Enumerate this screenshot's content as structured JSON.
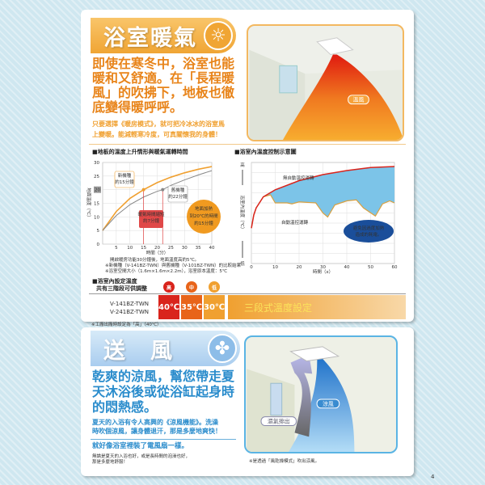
{
  "heating": {
    "title": "浴室暖氣",
    "icon": "sun-icon",
    "headline": [
      "即使在寒冬中，浴室也能",
      "暖和又舒適。在「長程暖",
      "風」的吹拂下，地板也徹",
      "底變得暖呼呼。"
    ],
    "sub": [
      "只要選擇《暖房模式》，就可把冷冰冰的浴室馬",
      "上變暖。能減輕寒冷度，可真關懷我的身體！"
    ],
    "illustration_label": "溫風"
  },
  "chart1": {
    "section_title": "■地板的溫度上升情形與暖氣運轉時間",
    "new_label": [
      "新機種",
      "約15分鐘"
    ],
    "old_label": [
      "舊機種",
      "約22分鐘"
    ],
    "reduce_label": [
      "暖氣時間縮短",
      "約7分鐘"
    ],
    "circle_label": [
      "地面加熱",
      "到20℃的時間",
      "約15分鐘"
    ],
    "highlight_tick": "20",
    "notes": [
      "開啟暖房功能30分鐘後，地面溫度高約5℃。",
      "※新機種（V-141BZ-TWN）與舊機種（V-101BZ-TWN）的比較結果",
      "※浴室空間大小（1.6m×1.6m×2.2m），浴室原本溫度：5℃"
    ]
  },
  "chart2": {
    "section_title": "■浴室內溫度控制示意圖",
    "label_no_auto": "無自動溫控運轉",
    "label_auto": "自動溫控運轉",
    "bubble": [
      "避免因過度加熱",
      "造成的耗電。"
    ],
    "y_high": "高",
    "y_low": "低"
  },
  "setting": {
    "title": [
      "■浴室內設定溫度",
      "共有三階段可供調整"
    ],
    "levels": [
      {
        "name": "高",
        "temp": "40℃",
        "color": "#d9241c"
      },
      {
        "name": "中",
        "temp": "35℃",
        "color": "#e8641a"
      },
      {
        "name": "低",
        "temp": "30℃",
        "color": "#f0a030"
      }
    ],
    "models": [
      "V-141BZ-TWN",
      "V-241BZ-TWN"
    ],
    "banner": "三段式溫度設定",
    "note": "※工廠出廠時設定為「高」（40℃）"
  },
  "fan": {
    "title": "送　風",
    "icon": "fan-icon",
    "headline": [
      "乾爽的涼風，幫您帶走夏",
      "天沐浴後或從浴缸起身時",
      "的悶熱感。"
    ],
    "sub": [
      "夏天的入浴有令人高興的《涼風機能》。洗澡",
      "時吹個涼風，讓身體退汗，那是多麼地爽快！"
    ],
    "sub2": "就好像浴室裡裝了電風扇一樣。",
    "small": [
      "無論是夏天的入浴也好，或是長時間的泡澡也好，",
      "那是多麼地舒服！"
    ],
    "label_cool": "涼風",
    "label_exhaust": "濕氣排出",
    "note": "※是透過「風乾燥模式」吹出涼風。"
  },
  "page_number": "4",
  "chart_data": [
    {
      "type": "line",
      "xlabel": "時間（分）",
      "ylabel": "地面溫度（℃）",
      "xlim": [
        0,
        40
      ],
      "ylim": [
        0,
        30
      ],
      "xticks": [
        5,
        10,
        15,
        20,
        25,
        30,
        35,
        40
      ],
      "yticks": [
        0,
        5,
        10,
        15,
        20,
        25,
        30
      ],
      "grid": true,
      "series": [
        {
          "name": "新機種",
          "color": "#f0a030",
          "x": [
            0,
            5,
            10,
            15,
            20,
            25,
            30,
            35,
            40
          ],
          "y": [
            5,
            12,
            16.8,
            20,
            22.6,
            24.6,
            26.2,
            27.5,
            28.5
          ]
        },
        {
          "name": "舊機種",
          "color": "#888888",
          "x": [
            0,
            5,
            10,
            15,
            20,
            22,
            25,
            30,
            35,
            40
          ],
          "y": [
            5,
            10.5,
            14.5,
            17.3,
            19.4,
            20,
            21.6,
            23.6,
            25.4,
            27
          ]
        }
      ]
    },
    {
      "type": "line",
      "xlabel": "時間（x）",
      "ylabel": "浴室內溫度（℃）",
      "xlim": [
        0,
        60
      ],
      "ylim": [
        0,
        10
      ],
      "xticks": [
        0,
        10,
        20,
        30,
        40,
        50,
        60
      ],
      "grid": true,
      "series": [
        {
          "name": "無自動溫控運轉",
          "color": "#d9241c",
          "x": [
            0,
            1,
            2,
            5,
            10,
            20,
            30,
            40,
            50,
            60
          ],
          "y": [
            3.5,
            4.8,
            5.5,
            6.6,
            7.3,
            8.2,
            8.8,
            9.2,
            9.5,
            9.6
          ]
        },
        {
          "name": "自動溫控運轉",
          "color": "#d9a040",
          "x": [
            0,
            1,
            2,
            5,
            8,
            10,
            15,
            17,
            20,
            27,
            30,
            32,
            35,
            40,
            44,
            47,
            52,
            55,
            58,
            60
          ],
          "y": [
            3.5,
            4.8,
            5.5,
            6.6,
            6.8,
            6,
            6,
            5.9,
            6.1,
            6,
            5,
            4.6,
            5.8,
            6.2,
            6.3,
            5.5,
            4.7,
            5.9,
            6.2,
            6
          ]
        }
      ]
    }
  ]
}
